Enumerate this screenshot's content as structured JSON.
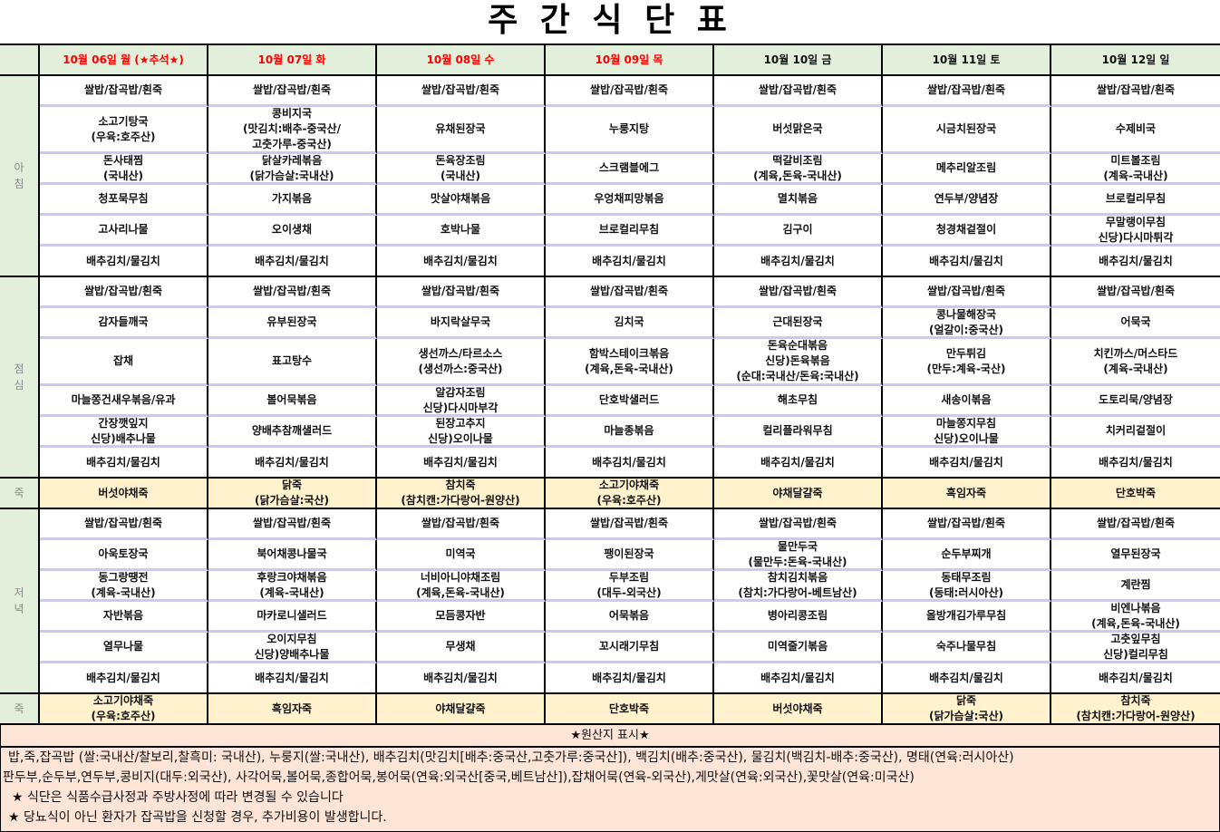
{
  "title": "주 간 식 단 표",
  "header": {
    "days": [
      {
        "label": "10월 06일 월 (★추석★)",
        "holiday": true
      },
      {
        "label": "10월 07일 화",
        "holiday": true
      },
      {
        "label": "10월 08일 수",
        "holiday": true
      },
      {
        "label": "10월 09일 목",
        "holiday": true
      },
      {
        "label": "10월 10일 금",
        "holiday": false
      },
      {
        "label": "10월 11일 토",
        "holiday": false
      },
      {
        "label": "10월 12일 일",
        "holiday": false
      }
    ]
  },
  "colors": {
    "holiday_text": "#ff0000",
    "header_bg": "#e2efda",
    "porridge_bg": "#fff2cc",
    "footer_bg": "#fce4d6",
    "row_divider": "#c9c9f2"
  },
  "meals": [
    {
      "label": "아\n침",
      "rows": [
        [
          "쌀밥/잡곡밥/흰죽",
          "쌀밥/잡곡밥/흰죽",
          "쌀밥/잡곡밥/흰죽",
          "쌀밥/잡곡밥/흰죽",
          "쌀밥/잡곡밥/흰죽",
          "쌀밥/잡곡밥/흰죽",
          "쌀밥/잡곡밥/흰죽"
        ],
        [
          "소고기탕국\n(우육:호주산)",
          "콩비지국\n(맛김치:배추-중국산/\n고춧가루-중국산)",
          "유채된장국",
          "누룽지탕",
          "버섯맑은국",
          "시금치된장국",
          "수제비국"
        ],
        [
          "돈사태찜\n(국내산)",
          "닭살카레볶음\n(닭가슴살:국내산)",
          "돈육장조림\n(국내산)",
          "스크램블에그",
          "떡갈비조림\n(계육,돈육-국내산)",
          "메추리알조림",
          "미트볼조림\n(계육-국내산)"
        ],
        [
          "청포묵무침",
          "가지볶음",
          "맛살야채볶음",
          "우엉채피망볶음",
          "멸치볶음",
          "연두부/양념장",
          "브로컬리무침"
        ],
        [
          "고사리나물",
          "오이생채",
          "호박나물",
          "브로컬리무침",
          "김구이",
          "청경채겉절이",
          "무말랭이무침\n신당)다시마튀각"
        ],
        [
          "배추김치/물김치",
          "배추김치/물김치",
          "배추김치/물김치",
          "배추김치/물김치",
          "배추김치/물김치",
          "배추김치/물김치",
          "배추김치/물김치"
        ]
      ]
    },
    {
      "label": "점\n심",
      "rows": [
        [
          "쌀밥/잡곡밥/흰죽",
          "쌀밥/잡곡밥/흰죽",
          "쌀밥/잡곡밥/흰죽",
          "쌀밥/잡곡밥/흰죽",
          "쌀밥/잡곡밥/흰죽",
          "쌀밥/잡곡밥/흰죽",
          "쌀밥/잡곡밥/흰죽"
        ],
        [
          "감자들깨국",
          "유부된장국",
          "바지락살무국",
          "김치국",
          "근대된장국",
          "콩나물해장국\n(얼갈이:중국산)",
          "어묵국"
        ],
        [
          "잡채",
          "표고탕수",
          "생선까스/타르소스\n(생선까스:중국산)",
          "함박스테이크볶음\n(계육,돈육-국내산)",
          "돈육순대볶음\n신당)돈육볶음\n(순대:국내산/돈육:국내산)",
          "만두튀김\n(만두:계육-국산)",
          "치킨까스/머스타드\n(계육-국내산)"
        ],
        [
          "마늘쫑건새우볶음/유과",
          "볼어묵볶음",
          "알감자조림\n신당)다시마부각",
          "단호박샐러드",
          "해초무침",
          "새송이볶음",
          "도토리묵/양념장"
        ],
        [
          "간장깻잎지\n신당)배추나물",
          "양배추참깨샐러드",
          "된장고추지\n신당)오이나물",
          "마늘종볶음",
          "컬리플라워무침",
          "마늘쫑지무침\n신당)오이나물",
          "치커리겉절이"
        ],
        [
          "배추김치/물김치",
          "배추김치/물김치",
          "배추김치/물김치",
          "배추김치/물김치",
          "배추김치/물김치",
          "배추김치/물김치",
          "배추김치/물김치"
        ]
      ]
    },
    {
      "label": "죽",
      "porridge": true,
      "rows": [
        [
          "버섯야채죽",
          "닭죽\n(닭가슴살:국산)",
          "참치죽\n(참치캔:가다랑어-원양산)",
          "소고기야채죽\n(우육:호주산)",
          "야채달걀죽",
          "흑임자죽",
          "단호박죽"
        ]
      ]
    },
    {
      "label": "저\n녁",
      "rows": [
        [
          "쌀밥/잡곡밥/흰죽",
          "쌀밥/잡곡밥/흰죽",
          "쌀밥/잡곡밥/흰죽",
          "쌀밥/잡곡밥/흰죽",
          "쌀밥/잡곡밥/흰죽",
          "쌀밥/잡곡밥/흰죽",
          "쌀밥/잡곡밥/흰죽"
        ],
        [
          "아욱토장국",
          "북어채콩나물국",
          "미역국",
          "팽이된장국",
          "물만두국\n(물만두:돈육-국내산)",
          "순두부찌개",
          "열무된장국"
        ],
        [
          "동그랑땡전\n(계육-국내산)",
          "후랑크야채볶음\n(계육-국내산)",
          "너비아니야채조림\n(계육,돈육-국내산)",
          "두부조림\n(대두-외국산)",
          "참치김치볶음\n(참치:가다랑어-베트남산)",
          "동태무조림\n(동태:러시아산)",
          "계란찜"
        ],
        [
          "자반볶음",
          "마카로니샐러드",
          "모듬콩자반",
          "어묵볶음",
          "병아리콩조림",
          "올방개김가루무침",
          "비엔나볶음\n(계육,돈육-국내산)"
        ],
        [
          "열무나물",
          "오이지무침\n신당)양배추나물",
          "무생채",
          "꼬시래기무침",
          "미역줄기볶음",
          "숙주나물무침",
          "고춧잎무침\n신당)컬리무침"
        ],
        [
          "배추김치/물김치",
          "배추김치/물김치",
          "배추김치/물김치",
          "배추김치/물김치",
          "배추김치/물김치",
          "배추김치/물김치",
          "배추김치/물김치"
        ]
      ]
    },
    {
      "label": "죽",
      "porridge": true,
      "rows": [
        [
          "소고기야채죽\n(우육:호주산)",
          "흑임자죽",
          "야채달걀죽",
          "단호박죽",
          "버섯야채죽",
          "닭죽\n(닭가슴살:국산)",
          "참치죽\n(참치캔:가다랑어-원양산)"
        ]
      ]
    }
  ],
  "footer": {
    "heading": "★원산지 표시★",
    "lines": [
      "밥,죽,잡곡밥 (쌀:국내산/찰보리,찰흑미: 국내산), 누룽지(쌀:국내산), 배추김치(맛김치[배추:중국산,고춧가루:중국산]), 백김치(배추:중국산), 물김치(백김치-배추:중국산), 명태(연육:러시아산)",
      "판두부,순두부,연두부,콩비지(대두:외국산), 사각어묵,볼어묵,종합어묵,봉어묵(연육:외국산[중국,베트남산]),잡채어묵(연육-외국산),게맛살(연육:외국산),꽃맛살(연육:미국산)",
      "★ 식단은 식품수급사정과 주방사정에 따라 변경될 수 있습니다",
      "★ 당뇨식이 아닌 환자가 잡곡밥을 신청할 경우, 추가비용이 발생합니다."
    ]
  }
}
